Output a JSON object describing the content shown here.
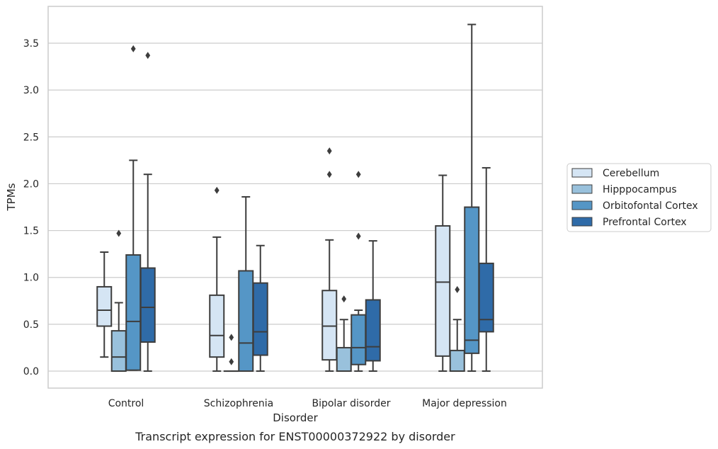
{
  "caption": "Transcript expression for ENST00000372922 by disorder",
  "chart_data": {
    "type": "boxplot",
    "xlabel": "Disorder",
    "ylabel": "TPMs",
    "ylim": [
      -0.18,
      3.9
    ],
    "yticks": [
      "0.0",
      "0.5",
      "1.0",
      "1.5",
      "2.0",
      "2.5",
      "3.0",
      "3.5"
    ],
    "grid": "horizontal",
    "legend_position": "right",
    "categories": [
      "Control",
      "Schizophrenia",
      "Bipolar disorder",
      "Major depression"
    ],
    "series": [
      {
        "name": "Cerebellum",
        "color": "#d5e5f4",
        "boxes": [
          {
            "whislo": 0.15,
            "q1": 0.48,
            "med": 0.65,
            "q3": 0.9,
            "whishi": 1.27,
            "fliers": []
          },
          {
            "whislo": 0.0,
            "q1": 0.15,
            "med": 0.38,
            "q3": 0.81,
            "whishi": 1.43,
            "fliers": [
              1.93
            ]
          },
          {
            "whislo": 0.0,
            "q1": 0.12,
            "med": 0.48,
            "q3": 0.86,
            "whishi": 1.4,
            "fliers": [
              2.1,
              2.35
            ]
          },
          {
            "whislo": 0.0,
            "q1": 0.16,
            "med": 0.95,
            "q3": 1.55,
            "whishi": 2.09,
            "fliers": []
          }
        ]
      },
      {
        "name": "Hipppocampus",
        "color": "#99c1dc",
        "boxes": [
          {
            "whislo": 0.0,
            "q1": 0.0,
            "med": 0.15,
            "q3": 0.43,
            "whishi": 0.73,
            "fliers": [
              1.47
            ]
          },
          {
            "whislo": 0.0,
            "q1": 0.0,
            "med": 0.0,
            "q3": 0.0,
            "whishi": 0.0,
            "fliers": [
              0.1,
              0.36
            ]
          },
          {
            "whislo": 0.0,
            "q1": 0.0,
            "med": 0.0,
            "q3": 0.25,
            "whishi": 0.55,
            "fliers": [
              0.77
            ]
          },
          {
            "whislo": 0.0,
            "q1": 0.0,
            "med": 0.0,
            "q3": 0.22,
            "whishi": 0.55,
            "fliers": [
              0.87
            ]
          }
        ]
      },
      {
        "name": "Orbitofontal Cortex",
        "color": "#5596c6",
        "boxes": [
          {
            "whislo": 0.01,
            "q1": 0.01,
            "med": 0.53,
            "q3": 1.24,
            "whishi": 2.25,
            "fliers": [
              3.44
            ]
          },
          {
            "whislo": 0.0,
            "q1": 0.0,
            "med": 0.3,
            "q3": 1.07,
            "whishi": 1.86,
            "fliers": []
          },
          {
            "whislo": 0.0,
            "q1": 0.07,
            "med": 0.25,
            "q3": 0.6,
            "whishi": 0.65,
            "fliers": [
              1.44,
              2.1
            ]
          },
          {
            "whislo": 0.0,
            "q1": 0.19,
            "med": 0.33,
            "q3": 1.75,
            "whishi": 3.7,
            "fliers": []
          }
        ]
      },
      {
        "name": "Prefrontal Cortex",
        "color": "#2f6ba8",
        "boxes": [
          {
            "whislo": 0.0,
            "q1": 0.31,
            "med": 0.68,
            "q3": 1.1,
            "whishi": 2.1,
            "fliers": [
              3.37
            ]
          },
          {
            "whislo": 0.0,
            "q1": 0.17,
            "med": 0.42,
            "q3": 0.94,
            "whishi": 1.34,
            "fliers": []
          },
          {
            "whislo": 0.0,
            "q1": 0.11,
            "med": 0.26,
            "q3": 0.76,
            "whishi": 1.39,
            "fliers": []
          },
          {
            "whislo": 0.0,
            "q1": 0.42,
            "med": 0.55,
            "q3": 1.15,
            "whishi": 2.17,
            "fliers": []
          }
        ]
      }
    ]
  }
}
